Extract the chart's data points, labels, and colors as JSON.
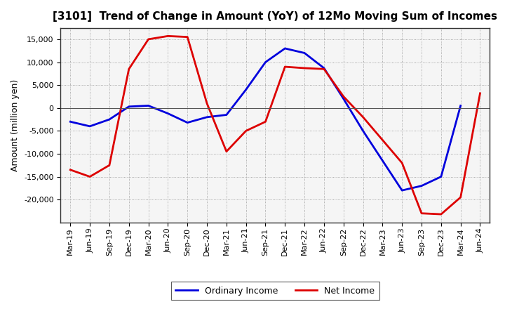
{
  "title": "[3101]  Trend of Change in Amount (YoY) of 12Mo Moving Sum of Incomes",
  "ylabel": "Amount (million yen)",
  "x_labels": [
    "Mar-19",
    "Jun-19",
    "Sep-19",
    "Dec-19",
    "Mar-20",
    "Jun-20",
    "Sep-20",
    "Dec-20",
    "Mar-21",
    "Jun-21",
    "Sep-21",
    "Dec-21",
    "Mar-22",
    "Jun-22",
    "Sep-22",
    "Dec-22",
    "Mar-23",
    "Jun-23",
    "Sep-23",
    "Dec-23",
    "Mar-24",
    "Jun-24"
  ],
  "ordinary_income": [
    -3000,
    -4000,
    -2500,
    300,
    500,
    -1200,
    -3200,
    -2000,
    -1500,
    4000,
    10000,
    13000,
    12000,
    8700,
    2000,
    -5000,
    -11500,
    -18000,
    -17000,
    -15000,
    500,
    null
  ],
  "net_income": [
    -13500,
    -15000,
    -12500,
    8500,
    15000,
    15700,
    15500,
    1000,
    -9500,
    -5000,
    -3000,
    9000,
    8700,
    8500,
    2500,
    -2000,
    -7000,
    -12000,
    -23000,
    -23200,
    -19500,
    3200
  ],
  "ordinary_color": "#0000dd",
  "net_color": "#dd0000",
  "bg_color": "#ffffff",
  "plot_bg_color": "#f5f5f5",
  "grid_color": "#888888",
  "ylim": [
    -25000,
    17500
  ],
  "yticks": [
    -20000,
    -15000,
    -10000,
    -5000,
    0,
    5000,
    10000,
    15000
  ],
  "line_width": 2.0,
  "legend_labels": [
    "Ordinary Income",
    "Net Income"
  ],
  "title_fontsize": 11,
  "axis_fontsize": 8,
  "ylabel_fontsize": 9
}
